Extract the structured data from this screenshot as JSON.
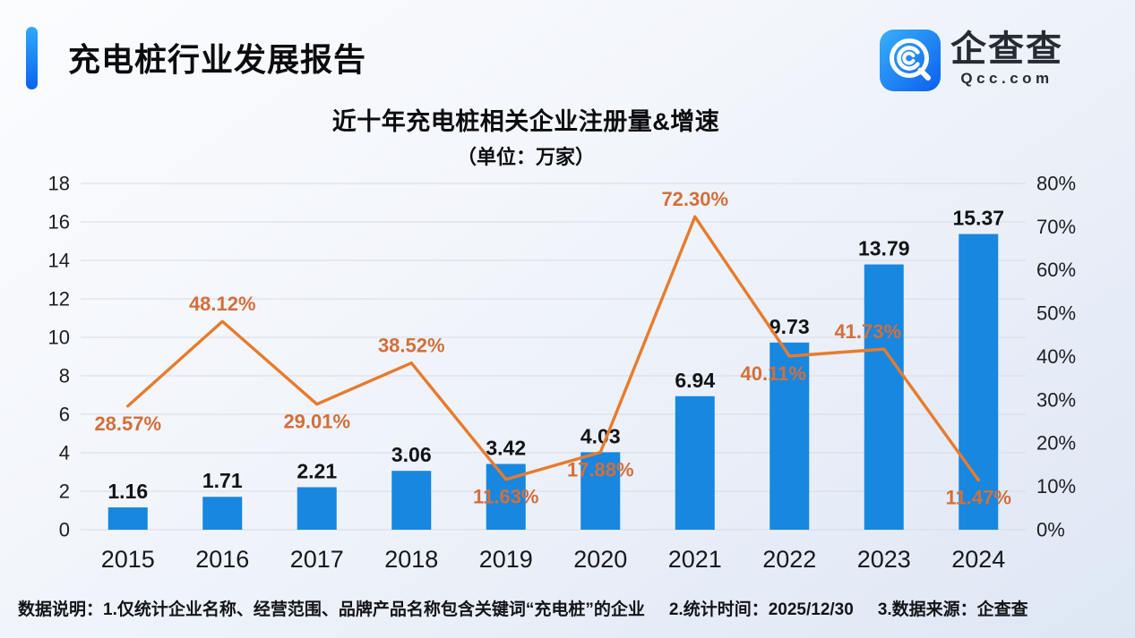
{
  "header": {
    "title": "充电桩行业发展报告",
    "logo": {
      "cn": "企查查",
      "en": "Qcc.com"
    }
  },
  "chart": {
    "title": "近十年充电桩相关企业注册量&增速",
    "subtitle": "（单位：万家）"
  },
  "chart_data": {
    "type": "combo_bar_line",
    "title": "近十年充电桩相关企业注册量&增速",
    "subtitle": "（单位：万家）",
    "categories": [
      "2015",
      "2016",
      "2017",
      "2018",
      "2019",
      "2020",
      "2021",
      "2022",
      "2023",
      "2024"
    ],
    "series": [
      {
        "name": "注册量（万家）",
        "type": "bar",
        "axis": "left",
        "color": "#1787e0",
        "values": [
          1.16,
          1.71,
          2.21,
          3.06,
          3.42,
          4.03,
          6.94,
          9.73,
          13.79,
          15.37
        ],
        "labels": [
          "1.16",
          "1.71",
          "2.21",
          "3.06",
          "3.42",
          "4.03",
          "6.94",
          "9.73",
          "13.79",
          "15.37"
        ]
      },
      {
        "name": "增速",
        "type": "line",
        "axis": "right",
        "color": "#e67c2e",
        "values": [
          28.57,
          48.12,
          29.01,
          38.52,
          11.63,
          17.88,
          72.3,
          40.11,
          41.73,
          11.47
        ],
        "labels": [
          "28.57%",
          "48.12%",
          "29.01%",
          "38.52%",
          "11.63%",
          "17.88%",
          "72.30%",
          "40.11%",
          "41.73%",
          "11.47%"
        ],
        "label_pos": [
          "below",
          "above",
          "below",
          "above",
          "below",
          "below",
          "above",
          "below",
          "above",
          "below"
        ]
      }
    ],
    "left_axis": {
      "min": 0,
      "max": 18,
      "step": 2,
      "ticks": [
        "0",
        "2",
        "4",
        "6",
        "8",
        "10",
        "12",
        "14",
        "16",
        "18"
      ]
    },
    "right_axis": {
      "min": 0,
      "max": 80,
      "step": 10,
      "ticks": [
        "0%",
        "10%",
        "20%",
        "30%",
        "40%",
        "50%",
        "60%",
        "70%",
        "80%"
      ]
    },
    "grid": true,
    "legend": "none"
  },
  "footer": {
    "notes": [
      "数据说明：1.仅统计企业名称、经营范围、品牌产品名称包含关键词“充电桩”的企业",
      "2.统计时间：2025/12/30",
      "3.数据来源：企查查"
    ]
  },
  "colors": {
    "bar": "#1787e0",
    "line": "#e67c2e",
    "line_label": "#d26f3c",
    "accent_start": "#2fa9f8",
    "accent_end": "#0b62f0",
    "grid_line": "#d7dbe4"
  }
}
